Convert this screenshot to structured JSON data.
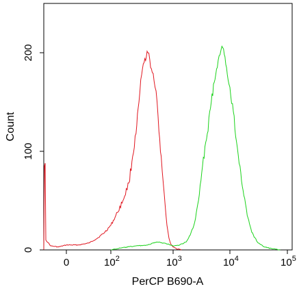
{
  "chart_data": {
    "type": "area",
    "title": "",
    "xlabel": "PerCP B690-A",
    "ylabel": "Count",
    "x_scale": "biexponential",
    "xlim": [
      -30,
      100000
    ],
    "ylim": [
      0,
      250
    ],
    "grid": false,
    "legend": "none",
    "x_ticks": [
      {
        "value": 0,
        "label": "0",
        "exp": ""
      },
      {
        "value": 100,
        "label": "10",
        "exp": "2"
      },
      {
        "value": 1000,
        "label": "10",
        "exp": "3"
      },
      {
        "value": 10000,
        "label": "10",
        "exp": "4"
      },
      {
        "value": 100000,
        "label": "10",
        "exp": "5"
      }
    ],
    "y_ticks": [
      {
        "value": 0,
        "label": "0"
      },
      {
        "value": 100,
        "label": "100"
      },
      {
        "value": 200,
        "label": "200"
      }
    ],
    "series": [
      {
        "color": "#e0141e",
        "points": [
          [
            -30,
            0
          ],
          [
            -29,
            85
          ],
          [
            -28,
            88
          ],
          [
            -27,
            10
          ],
          [
            -20,
            4
          ],
          [
            -10,
            3
          ],
          [
            0,
            5
          ],
          [
            20,
            5
          ],
          [
            40,
            7
          ],
          [
            60,
            12
          ],
          [
            80,
            18
          ],
          [
            100,
            25
          ],
          [
            130,
            38
          ],
          [
            160,
            50
          ],
          [
            200,
            68
          ],
          [
            230,
            95
          ],
          [
            260,
            118
          ],
          [
            290,
            150
          ],
          [
            320,
            178
          ],
          [
            350,
            190
          ],
          [
            380,
            196
          ],
          [
            400,
            200
          ],
          [
            430,
            193
          ],
          [
            470,
            180
          ],
          [
            520,
            165
          ],
          [
            560,
            150
          ],
          [
            600,
            120
          ],
          [
            650,
            95
          ],
          [
            700,
            68
          ],
          [
            750,
            45
          ],
          [
            800,
            25
          ],
          [
            860,
            12
          ],
          [
            920,
            6
          ],
          [
            1000,
            3
          ],
          [
            1150,
            1
          ],
          [
            1400,
            0
          ]
        ]
      },
      {
        "color": "#19d219",
        "points": [
          [
            100,
            0
          ],
          [
            150,
            2
          ],
          [
            250,
            4
          ],
          [
            400,
            5
          ],
          [
            550,
            8
          ],
          [
            700,
            7
          ],
          [
            850,
            6
          ],
          [
            1000,
            4
          ],
          [
            1300,
            5
          ],
          [
            1700,
            8
          ],
          [
            2000,
            15
          ],
          [
            2400,
            28
          ],
          [
            2800,
            50
          ],
          [
            3300,
            85
          ],
          [
            4000,
            118
          ],
          [
            4700,
            150
          ],
          [
            5300,
            170
          ],
          [
            6000,
            185
          ],
          [
            6700,
            198
          ],
          [
            7500,
            205
          ],
          [
            8200,
            196
          ],
          [
            9000,
            178
          ],
          [
            10000,
            165
          ],
          [
            11500,
            140
          ],
          [
            13000,
            110
          ],
          [
            15000,
            85
          ],
          [
            17500,
            55
          ],
          [
            20000,
            35
          ],
          [
            24000,
            18
          ],
          [
            30000,
            8
          ],
          [
            40000,
            3
          ],
          [
            55000,
            1
          ],
          [
            75000,
            0
          ]
        ]
      }
    ]
  }
}
